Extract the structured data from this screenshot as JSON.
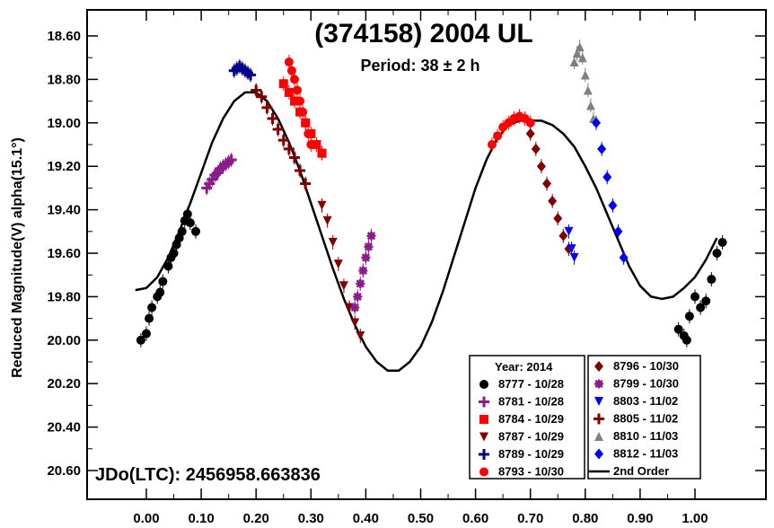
{
  "chart_data": {
    "type": "scatter",
    "title": "(374158) 2004 UL",
    "subtitle": "Period: 38 ± 2 h",
    "ylabel": "Reduced Magnitude(V) alpha(15.1°)",
    "xlabel": "",
    "xlim": [
      -0.11,
      1.08
    ],
    "ylim": [
      20.72,
      18.52
    ],
    "y_inverted": true,
    "grid": false,
    "legend_placement": "bottom-right",
    "epoch_label": "JDo(LTC): 2456958.663836",
    "xticks": [
      "0.00",
      "0.10",
      "0.20",
      "0.30",
      "0.40",
      "0.50",
      "0.60",
      "0.70",
      "0.80",
      "0.90",
      "1.00"
    ],
    "xtick_values": [
      0.0,
      0.1,
      0.2,
      0.3,
      0.4,
      0.5,
      0.6,
      0.7,
      0.8,
      0.9,
      1.0
    ],
    "yticks": [
      "18.60",
      "18.80",
      "19.00",
      "19.20",
      "19.40",
      "19.60",
      "19.80",
      "20.00",
      "20.20",
      "20.40",
      "20.60"
    ],
    "ytick_values": [
      18.6,
      18.8,
      19.0,
      19.2,
      19.4,
      19.6,
      19.8,
      20.0,
      20.2,
      20.4,
      20.6
    ],
    "legend_header": "Year: 2014",
    "legend_left": [
      {
        "label": "8777 - 10/28",
        "color": "#000000",
        "marker": "circle"
      },
      {
        "label": "8781 - 10/28",
        "color": "#8b1a8b",
        "marker": "plus"
      },
      {
        "label": "8784 - 10/29",
        "color": "#ff0000",
        "marker": "square"
      },
      {
        "label": "8787 - 10/29",
        "color": "#800000",
        "marker": "triangle-down"
      },
      {
        "label": "8789 - 10/29",
        "color": "#00008b",
        "marker": "plus"
      },
      {
        "label": "8793 - 10/30",
        "color": "#ff0000",
        "marker": "circle"
      }
    ],
    "legend_right": [
      {
        "label": "8796 - 10/30",
        "color": "#800000",
        "marker": "diamond"
      },
      {
        "label": "8799 - 10/30",
        "color": "#8b1a8b",
        "marker": "star"
      },
      {
        "label": "8803 - 11/02",
        "color": "#0000ff",
        "marker": "triangle-down"
      },
      {
        "label": "8805 - 11/02",
        "color": "#800000",
        "marker": "plus"
      },
      {
        "label": "8810 - 11/03",
        "color": "#808080",
        "marker": "triangle-up"
      },
      {
        "label": "8812 - 11/03",
        "color": "#0000ff",
        "marker": "diamond"
      },
      {
        "label": "2nd Order",
        "color": "#000000",
        "marker": "line"
      }
    ],
    "fit_curve": {
      "name": "2nd Order",
      "x": [
        -0.02,
        0.0,
        0.02,
        0.04,
        0.06,
        0.08,
        0.1,
        0.12,
        0.14,
        0.16,
        0.18,
        0.2,
        0.22,
        0.24,
        0.26,
        0.28,
        0.3,
        0.32,
        0.34,
        0.36,
        0.38,
        0.4,
        0.42,
        0.44,
        0.46,
        0.48,
        0.5,
        0.52,
        0.54,
        0.56,
        0.58,
        0.6,
        0.62,
        0.64,
        0.66,
        0.68,
        0.7,
        0.72,
        0.74,
        0.76,
        0.78,
        0.8,
        0.82,
        0.84,
        0.86,
        0.88,
        0.9,
        0.92,
        0.94,
        0.96,
        0.98,
        1.0,
        1.02,
        1.04
      ],
      "y": [
        19.77,
        19.76,
        19.71,
        19.62,
        19.5,
        19.37,
        19.23,
        19.09,
        18.98,
        18.9,
        18.86,
        18.86,
        18.9,
        18.98,
        19.09,
        19.22,
        19.37,
        19.52,
        19.67,
        19.81,
        19.93,
        20.03,
        20.1,
        20.14,
        20.14,
        20.1,
        20.03,
        19.92,
        19.78,
        19.62,
        19.46,
        19.3,
        19.17,
        19.07,
        19.01,
        18.99,
        18.99,
        18.99,
        19.01,
        19.05,
        19.11,
        19.2,
        19.3,
        19.42,
        19.54,
        19.66,
        19.75,
        19.8,
        19.81,
        19.8,
        19.76,
        19.71,
        19.63,
        19.53
      ]
    },
    "series": [
      {
        "name": "8777 - 10/28",
        "color": "#000000",
        "marker": "circle",
        "x": [
          -0.01,
          0.0,
          0.005,
          0.01,
          0.02,
          0.025,
          0.03,
          0.04,
          0.045,
          0.05,
          0.055,
          0.06,
          0.065,
          0.07,
          0.075,
          0.08,
          0.09,
          0.97,
          0.98,
          0.985,
          0.99,
          1.0,
          1.01,
          1.02,
          1.03,
          1.04,
          1.05
        ],
        "y": [
          20.0,
          19.97,
          19.9,
          19.85,
          19.8,
          19.78,
          19.73,
          19.66,
          19.62,
          19.6,
          19.56,
          19.53,
          19.5,
          19.45,
          19.42,
          19.46,
          19.5,
          19.95,
          19.98,
          20.0,
          19.89,
          19.8,
          19.85,
          19.82,
          19.72,
          19.6,
          19.55
        ]
      },
      {
        "name": "8781 - 10/28",
        "color": "#8b1a8b",
        "marker": "plus",
        "x": [
          0.11,
          0.115,
          0.12,
          0.125,
          0.13,
          0.135,
          0.14,
          0.145,
          0.15,
          0.155
        ],
        "y": [
          19.3,
          19.28,
          19.26,
          19.24,
          19.23,
          19.21,
          19.2,
          19.19,
          19.18,
          19.17
        ]
      },
      {
        "name": "8784 - 10/29",
        "color": "#ff0000",
        "marker": "square",
        "x": [
          0.25,
          0.26,
          0.27,
          0.28,
          0.29,
          0.3,
          0.31,
          0.32
        ],
        "y": [
          18.82,
          18.86,
          18.9,
          18.95,
          19.0,
          19.05,
          19.1,
          19.14
        ]
      },
      {
        "name": "8787 - 10/29",
        "color": "#800000",
        "marker": "triangle-down",
        "x": [
          0.32,
          0.33,
          0.34,
          0.35,
          0.36,
          0.37,
          0.38,
          0.39
        ],
        "y": [
          19.38,
          19.45,
          19.55,
          19.65,
          19.75,
          19.85,
          19.92,
          19.98
        ]
      },
      {
        "name": "8789 - 10/29",
        "color": "#00008b",
        "marker": "plus",
        "x": [
          0.16,
          0.165,
          0.17,
          0.175,
          0.18,
          0.185,
          0.19
        ],
        "y": [
          18.76,
          18.75,
          18.74,
          18.75,
          18.76,
          18.77,
          18.78
        ]
      },
      {
        "name": "8793 - 10/30",
        "color": "#ff0000",
        "marker": "circle",
        "x": [
          0.26,
          0.265,
          0.27,
          0.275,
          0.28,
          0.285,
          0.29,
          0.295,
          0.3,
          0.63,
          0.64,
          0.65,
          0.66,
          0.67,
          0.68,
          0.69,
          0.7
        ],
        "y": [
          18.72,
          18.76,
          18.8,
          18.85,
          18.9,
          18.95,
          19.0,
          19.05,
          19.1,
          19.1,
          19.06,
          19.02,
          19.0,
          18.98,
          18.97,
          18.98,
          19.0
        ]
      },
      {
        "name": "8796 - 10/30",
        "color": "#800000",
        "marker": "diamond",
        "x": [
          0.7,
          0.71,
          0.72,
          0.73,
          0.74,
          0.75,
          0.76,
          0.77
        ],
        "y": [
          19.05,
          19.12,
          19.2,
          19.28,
          19.36,
          19.44,
          19.52,
          19.58
        ]
      },
      {
        "name": "8799 - 10/30",
        "color": "#8b1a8b",
        "marker": "star",
        "x": [
          0.38,
          0.385,
          0.39,
          0.395,
          0.4,
          0.405,
          0.41
        ],
        "y": [
          19.85,
          19.8,
          19.74,
          19.68,
          19.62,
          19.57,
          19.52
        ]
      },
      {
        "name": "8803 - 11/02",
        "color": "#0000ff",
        "marker": "triangle-down",
        "x": [
          0.77,
          0.775,
          0.78
        ],
        "y": [
          19.5,
          19.58,
          19.62
        ]
      },
      {
        "name": "8805 - 11/02",
        "color": "#800000",
        "marker": "plus",
        "x": [
          0.2,
          0.21,
          0.22,
          0.23,
          0.24,
          0.25,
          0.26,
          0.27,
          0.28,
          0.29
        ],
        "y": [
          18.85,
          18.88,
          18.93,
          18.98,
          19.03,
          19.08,
          19.12,
          19.16,
          19.22,
          19.28
        ]
      },
      {
        "name": "8810 - 11/03",
        "color": "#808080",
        "marker": "triangle-up",
        "x": [
          0.78,
          0.785,
          0.79,
          0.795,
          0.8,
          0.805,
          0.81,
          0.815
        ],
        "y": [
          18.72,
          18.68,
          18.65,
          18.7,
          18.78,
          18.85,
          18.92,
          18.98
        ]
      },
      {
        "name": "8812 - 11/03",
        "color": "#0000ff",
        "marker": "diamond",
        "x": [
          0.82,
          0.83,
          0.84,
          0.85,
          0.86,
          0.87
        ],
        "y": [
          19.0,
          19.12,
          19.25,
          19.38,
          19.5,
          19.62
        ]
      }
    ]
  }
}
